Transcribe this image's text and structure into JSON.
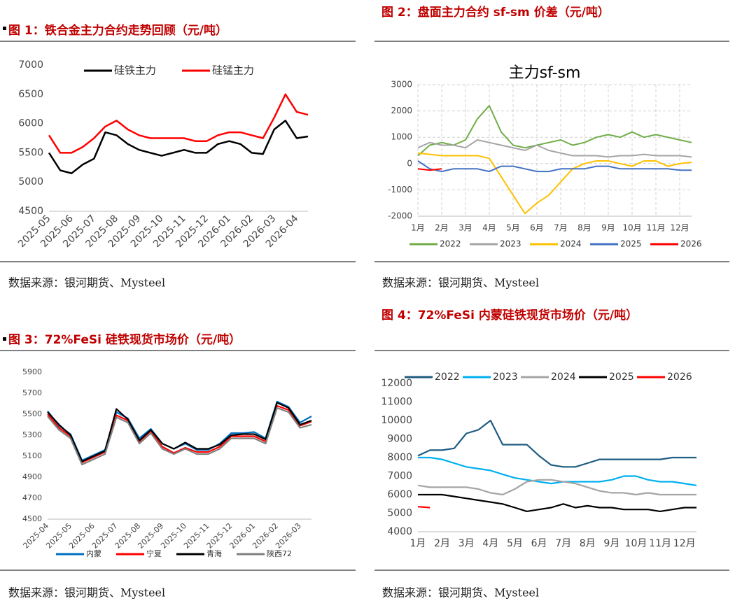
{
  "figures": [
    {
      "caption": "图 1：铁合金主力合约走势回顾（元/吨）",
      "source": "数据来源：银河期货、Mysteel"
    },
    {
      "caption": "图 2：盘面主力合约 sf-sm 价差（元/吨）",
      "source": "数据来源：银河期货、Mysteel"
    },
    {
      "caption": "图 3：72%FeSi 硅铁现货市场价（元/吨）",
      "source": "数据来源：银河期货、Mysteel"
    },
    {
      "caption": "图 4：72%FeSi 内蒙硅铁现货市场价（元/吨）",
      "source": "数据来源：银河期货、Mysteel"
    }
  ],
  "chart_data": [
    {
      "type": "line",
      "categories": [
        "2025-05",
        null,
        "2025-06",
        null,
        "2025-07",
        null,
        "2025-08",
        null,
        "2025-09",
        null,
        "2025-10",
        null,
        "2025-11",
        null,
        "2025-12",
        null,
        "2026-01",
        null,
        "2026-02",
        null,
        "2026-03",
        null,
        "2026-04",
        null
      ],
      "ylim": [
        4500,
        7000
      ],
      "yticks": [
        4500,
        5000,
        5500,
        6000,
        6500,
        7000
      ],
      "grid": false,
      "legend": "top",
      "series": [
        {
          "name": "硅铁主力",
          "color": "#000000",
          "values": [
            5500,
            5200,
            5150,
            5300,
            5400,
            5850,
            5800,
            5650,
            5550,
            5500,
            5450,
            5500,
            5550,
            5500,
            5500,
            5650,
            5700,
            5650,
            5500,
            5480,
            5900,
            6050,
            5750,
            5780
          ]
        },
        {
          "name": "硅锰主力",
          "color": "#ff0000",
          "values": [
            5800,
            5500,
            5500,
            5600,
            5750,
            5950,
            6050,
            5900,
            5800,
            5750,
            5750,
            5750,
            5750,
            5700,
            5700,
            5800,
            5850,
            5850,
            5800,
            5750,
            6100,
            6500,
            6200,
            6150
          ]
        }
      ]
    },
    {
      "type": "line",
      "title": "主力sf-sm",
      "categories": [
        "1月",
        null,
        "2月",
        null,
        "3月",
        null,
        "4月",
        null,
        "5月",
        null,
        "6月",
        null,
        "7月",
        null,
        "8月",
        null,
        "9月",
        null,
        "10月",
        null,
        "11月",
        null,
        "12月",
        null
      ],
      "ylim": [
        -2000,
        3000
      ],
      "yticks": [
        -2000,
        -1000,
        0,
        1000,
        2000,
        3000
      ],
      "grid": true,
      "legend": "bottom",
      "series": [
        {
          "name": "2022",
          "color": "#70ad47",
          "values": [
            300,
            700,
            800,
            700,
            900,
            1700,
            2200,
            1200,
            700,
            600,
            700,
            800,
            900,
            700,
            800,
            1000,
            1100,
            1000,
            1200,
            1000,
            1100,
            1000,
            900,
            800
          ]
        },
        {
          "name": "2023",
          "color": "#a5a5a5",
          "values": [
            600,
            800,
            700,
            700,
            600,
            900,
            800,
            700,
            600,
            500,
            700,
            500,
            400,
            300,
            300,
            300,
            250,
            300,
            300,
            350,
            300,
            300,
            300,
            250
          ]
        },
        {
          "name": "2024",
          "color": "#ffc000",
          "values": [
            400,
            350,
            300,
            300,
            300,
            300,
            200,
            -500,
            -1200,
            -1900,
            -1500,
            -1200,
            -700,
            -200,
            0,
            100,
            100,
            0,
            -100,
            100,
            100,
            -100,
            0,
            50
          ]
        },
        {
          "name": "2025",
          "color": "#4472c4",
          "values": [
            100,
            -200,
            -300,
            -200,
            -200,
            -200,
            -300,
            -100,
            -100,
            -200,
            -300,
            -300,
            -200,
            -200,
            -200,
            -100,
            -100,
            -200,
            -200,
            -200,
            -200,
            -200,
            -250,
            -250
          ]
        },
        {
          "name": "2026",
          "color": "#ff0000",
          "values": [
            -200,
            -250,
            -200,
            null,
            null,
            null,
            null,
            null,
            null,
            null,
            null,
            null,
            null,
            null,
            null,
            null,
            null,
            null,
            null,
            null,
            null,
            null,
            null,
            null
          ]
        }
      ]
    },
    {
      "type": "line",
      "categories": [
        "2025-04",
        null,
        "2025-05",
        null,
        "2025-06",
        null,
        "2025-07",
        null,
        "2025-08",
        null,
        "2025-09",
        null,
        "2025-10",
        null,
        "2025-11",
        null,
        "2025-12",
        null,
        "2026-01",
        null,
        "2026-02",
        null,
        "2026-03",
        null
      ],
      "ylim": [
        4500,
        5900
      ],
      "yticks": [
        4500,
        4700,
        4900,
        5100,
        5300,
        5500,
        5700,
        5900
      ],
      "grid": false,
      "legend": "bottom",
      "series": [
        {
          "name": "内蒙",
          "color": "#0070c0",
          "values": [
            5530,
            5390,
            5310,
            5060,
            5110,
            5160,
            5520,
            5460,
            5270,
            5360,
            5220,
            5170,
            5220,
            5160,
            5160,
            5220,
            5320,
            5320,
            5330,
            5270,
            5620,
            5570,
            5420,
            5480
          ]
        },
        {
          "name": "宁夏",
          "color": "#ff0000",
          "values": [
            5500,
            5370,
            5290,
            5040,
            5090,
            5140,
            5490,
            5440,
            5240,
            5340,
            5190,
            5130,
            5180,
            5140,
            5140,
            5190,
            5290,
            5290,
            5290,
            5240,
            5580,
            5540,
            5390,
            5430
          ]
        },
        {
          "name": "青海",
          "color": "#000000",
          "values": [
            5520,
            5400,
            5300,
            5050,
            5100,
            5150,
            5550,
            5450,
            5250,
            5350,
            5220,
            5170,
            5230,
            5170,
            5170,
            5210,
            5300,
            5310,
            5310,
            5260,
            5610,
            5560,
            5400,
            5440
          ]
        },
        {
          "name": "陕西72",
          "color": "#808080",
          "values": [
            5480,
            5350,
            5270,
            5020,
            5070,
            5120,
            5470,
            5420,
            5220,
            5320,
            5170,
            5120,
            5170,
            5120,
            5120,
            5170,
            5270,
            5270,
            5270,
            5220,
            5560,
            5520,
            5370,
            5400
          ]
        }
      ]
    },
    {
      "type": "line",
      "categories": [
        "1月",
        null,
        "2月",
        null,
        "3月",
        null,
        "4月",
        null,
        "5月",
        null,
        "6月",
        null,
        "7月",
        null,
        "8月",
        null,
        "9月",
        null,
        "10月",
        null,
        "11月",
        null,
        "12月",
        null
      ],
      "ylim": [
        4000,
        12000
      ],
      "yticks": [
        4000,
        5000,
        6000,
        7000,
        8000,
        9000,
        10000,
        11000,
        12000
      ],
      "grid": false,
      "legend": "top",
      "series": [
        {
          "name": "2022",
          "color": "#1f5c82",
          "values": [
            8100,
            8400,
            8400,
            8500,
            9300,
            9500,
            10000,
            8700,
            8700,
            8700,
            8100,
            7600,
            7500,
            7500,
            7700,
            7900,
            7900,
            7900,
            7900,
            7900,
            7900,
            8000,
            8000,
            8000
          ]
        },
        {
          "name": "2023",
          "color": "#00b0f0",
          "values": [
            8000,
            8000,
            7900,
            7700,
            7500,
            7400,
            7300,
            7100,
            6900,
            6800,
            6700,
            6600,
            6700,
            6700,
            6700,
            6700,
            6800,
            7000,
            7000,
            6800,
            6700,
            6700,
            6600,
            6500
          ]
        },
        {
          "name": "2024",
          "color": "#a5a5a5",
          "values": [
            6500,
            6400,
            6400,
            6400,
            6400,
            6300,
            6100,
            6000,
            6300,
            6700,
            6800,
            6800,
            6700,
            6600,
            6400,
            6200,
            6100,
            6100,
            6000,
            6100,
            6000,
            6000,
            6000,
            6000
          ]
        },
        {
          "name": "2025",
          "color": "#000000",
          "values": [
            6000,
            6000,
            6000,
            5900,
            5800,
            5700,
            5600,
            5500,
            5300,
            5100,
            5200,
            5300,
            5500,
            5300,
            5400,
            5300,
            5300,
            5200,
            5200,
            5200,
            5100,
            5200,
            5300,
            5300
          ]
        },
        {
          "name": "2026",
          "color": "#ff0000",
          "values": [
            5350,
            5300,
            null,
            null,
            null,
            null,
            null,
            null,
            null,
            null,
            null,
            null,
            null,
            null,
            null,
            null,
            null,
            null,
            null,
            null,
            null,
            null,
            null,
            null
          ]
        }
      ]
    }
  ]
}
